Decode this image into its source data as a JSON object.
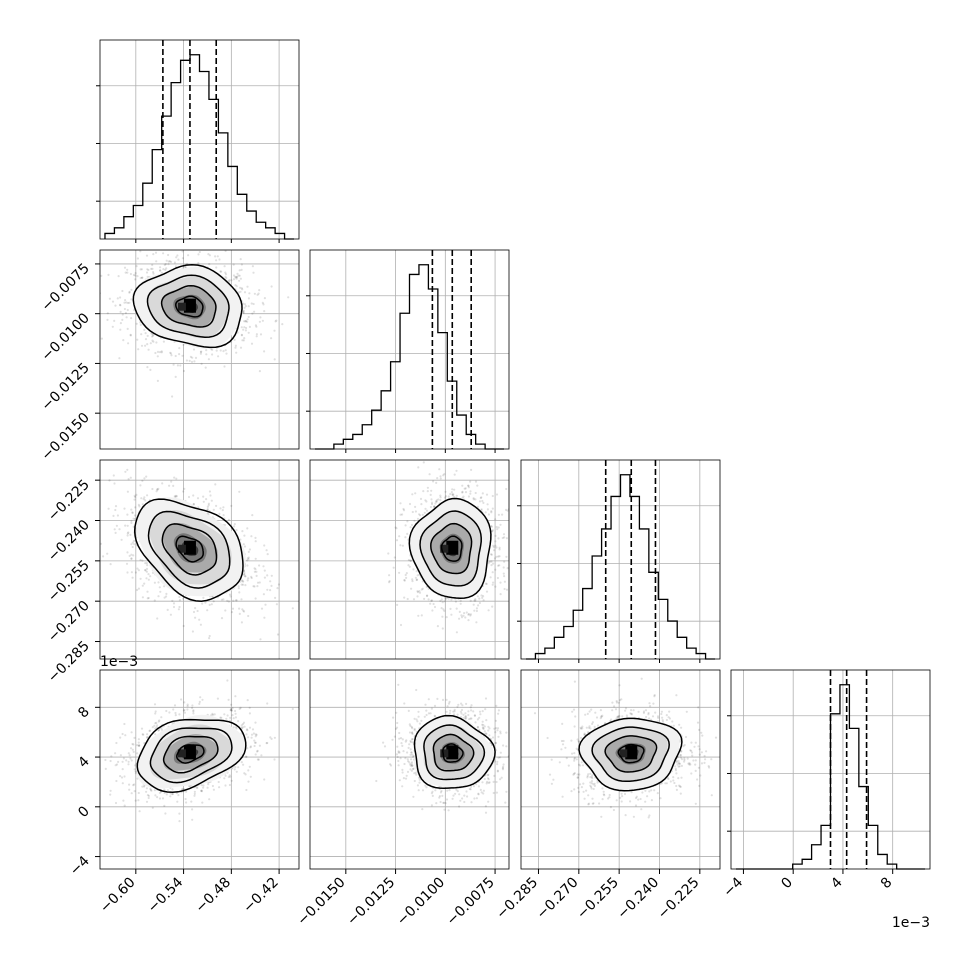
{
  "chart_data": {
    "type": "corner",
    "parameters": [
      {
        "xticks": [
          -0.6,
          -0.54,
          -0.48,
          -0.42
        ],
        "xtick_labels": [
          "−0.60",
          "−0.54",
          "−0.48",
          "−0.42"
        ],
        "range": [
          -0.645,
          -0.395
        ],
        "median": -0.532,
        "q16": -0.566,
        "q84": -0.499,
        "sigma": 0.034,
        "hist": [
          1,
          2,
          4,
          6,
          10,
          16,
          22,
          28,
          32,
          33,
          30,
          25,
          19,
          13,
          8,
          5,
          3,
          2,
          1,
          0
        ]
      },
      {
        "yticks": [
          -0.0075,
          -0.01,
          -0.0125,
          -0.015
        ],
        "ytick_labels": [
          "−0.0075",
          "−0.0100",
          "−0.0125",
          "−0.0150"
        ],
        "xticks": [
          -0.015,
          -0.0125,
          -0.01,
          -0.0075
        ],
        "xtick_labels": [
          "−0.0150",
          "−0.0125",
          "−0.0100",
          "−0.0075"
        ],
        "range": [
          -0.0168,
          -0.0068
        ],
        "median": -0.00965,
        "q16": -0.01065,
        "q84": -0.0087,
        "sigma": 0.001,
        "hist": [
          0,
          0,
          1,
          2,
          3,
          5,
          8,
          12,
          18,
          28,
          36,
          38,
          33,
          24,
          14,
          7,
          3,
          1,
          0,
          0
        ]
      },
      {
        "yticks": [
          -0.225,
          -0.24,
          -0.255,
          -0.27,
          -0.285
        ],
        "ytick_labels": [
          "−0.225",
          "−0.240",
          "−0.255",
          "−0.270",
          "−0.285"
        ],
        "xticks": [
          -0.285,
          -0.27,
          -0.255,
          -0.24,
          -0.225
        ],
        "xtick_labels": [
          "−0.285",
          "−0.270",
          "−0.255",
          "−0.240",
          "−0.225"
        ],
        "range": [
          -0.2915,
          -0.2175
        ],
        "median": -0.2505,
        "q16": -0.26,
        "q84": -0.2415,
        "sigma": 0.0092,
        "hist": [
          0,
          1,
          2,
          4,
          6,
          9,
          13,
          19,
          24,
          30,
          34,
          30,
          24,
          16,
          11,
          7,
          4,
          2,
          1,
          0
        ]
      },
      {
        "yticks": [
          8,
          4,
          0,
          -4
        ],
        "ytick_labels": [
          "8",
          "4",
          "0",
          "−4"
        ],
        "xticks": [
          -4,
          0,
          4,
          8
        ],
        "xtick_labels": [
          "−4",
          "0",
          "4",
          "8"
        ],
        "range": [
          -5,
          11
        ],
        "median": 4.3,
        "q16": 3.0,
        "q84": 5.9,
        "sigma": 1.45,
        "hist": [
          0,
          0,
          0,
          0,
          0,
          0,
          1,
          2,
          5,
          9,
          32,
          38,
          29,
          17,
          9,
          3,
          1,
          0,
          0,
          0
        ],
        "offset_label": "1e−3"
      }
    ],
    "correlations": {
      "1,0": -0.12,
      "2,0": -0.35,
      "2,1": 0.0,
      "3,0": 0.3,
      "3,1": -0.05,
      "3,2": 0.05
    },
    "contour_levels": [
      0.5,
      1.0,
      1.5,
      2.0
    ]
  }
}
